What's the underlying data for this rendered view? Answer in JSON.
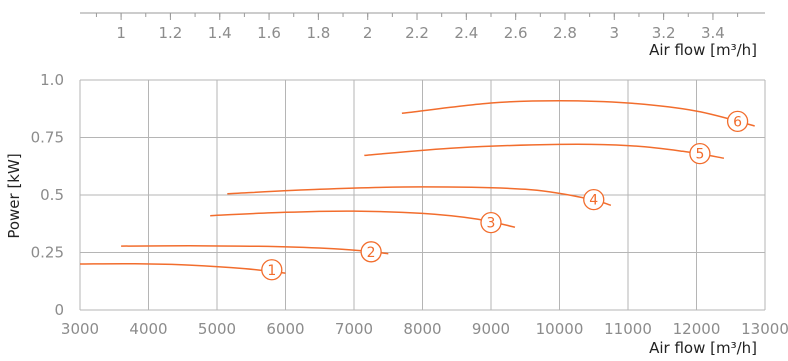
{
  "chart_data": {
    "type": "line",
    "colors": {
      "curve": "#f26d2d",
      "grid": "#b5b5b5",
      "tick_text": "#8c8c8c",
      "axis_title": "#222222"
    },
    "xlabel": "Air flow [m³/h]",
    "ylabel": "Power [kW]",
    "xlim": [
      3000,
      13000
    ],
    "ylim": [
      0,
      1.0
    ],
    "x_ticks": [
      3000,
      4000,
      5000,
      6000,
      7000,
      8000,
      9000,
      10000,
      11000,
      12000,
      13000
    ],
    "x_tick_labels": [
      "3000",
      "4000",
      "5000",
      "6000",
      "7000",
      "8000",
      "9000",
      "10000",
      "11000",
      "12000",
      "13000"
    ],
    "y_ticks": [
      0,
      0.25,
      0.5,
      0.75,
      1.0
    ],
    "y_tick_labels": [
      "0",
      "0.25",
      "0.5",
      "0.75",
      "1.0"
    ],
    "top_axis": {
      "label": "Air flow [m³/h]",
      "ticks": [
        1,
        1.2,
        1.4,
        1.6,
        1.8,
        2,
        2.2,
        2.4,
        2.6,
        2.8,
        3,
        3.2,
        3.4
      ],
      "tick_labels": [
        "1",
        "1.2",
        "1.4",
        "1.6",
        "1.8",
        "2",
        "2.2",
        "2.4",
        "2.6",
        "2.8",
        "3",
        "3.2",
        "3.4"
      ],
      "factor": 3600
    },
    "grid": true,
    "series": [
      {
        "name": "1",
        "x": [
          3000,
          3800,
          4600,
          5400,
          6000
        ],
        "y": [
          0.2,
          0.201,
          0.195,
          0.18,
          0.16
        ]
      },
      {
        "name": "2",
        "x": [
          3600,
          4600,
          5600,
          6600,
          7200,
          7500
        ],
        "y": [
          0.278,
          0.279,
          0.277,
          0.268,
          0.255,
          0.245
        ]
      },
      {
        "name": "3",
        "x": [
          4900,
          6000,
          7000,
          8000,
          8800,
          9350
        ],
        "y": [
          0.41,
          0.425,
          0.43,
          0.42,
          0.395,
          0.36
        ]
      },
      {
        "name": "4",
        "x": [
          5150,
          6500,
          8000,
          9500,
          10400,
          10750
        ],
        "y": [
          0.505,
          0.525,
          0.535,
          0.525,
          0.485,
          0.455
        ]
      },
      {
        "name": "5",
        "x": [
          7150,
          8500,
          10000,
          11000,
          11800,
          12400
        ],
        "y": [
          0.672,
          0.705,
          0.72,
          0.715,
          0.69,
          0.66
        ]
      },
      {
        "name": "6",
        "x": [
          7700,
          9000,
          10000,
          11000,
          12000,
          12850
        ],
        "y": [
          0.855,
          0.9,
          0.91,
          0.9,
          0.865,
          0.8
        ]
      }
    ],
    "markers": [
      {
        "label": "1",
        "x": 5800,
        "y": 0.175
      },
      {
        "label": "2",
        "x": 7250,
        "y": 0.253
      },
      {
        "label": "3",
        "x": 9000,
        "y": 0.38
      },
      {
        "label": "4",
        "x": 10500,
        "y": 0.48
      },
      {
        "label": "5",
        "x": 12050,
        "y": 0.68
      },
      {
        "label": "6",
        "x": 12600,
        "y": 0.82
      }
    ]
  }
}
